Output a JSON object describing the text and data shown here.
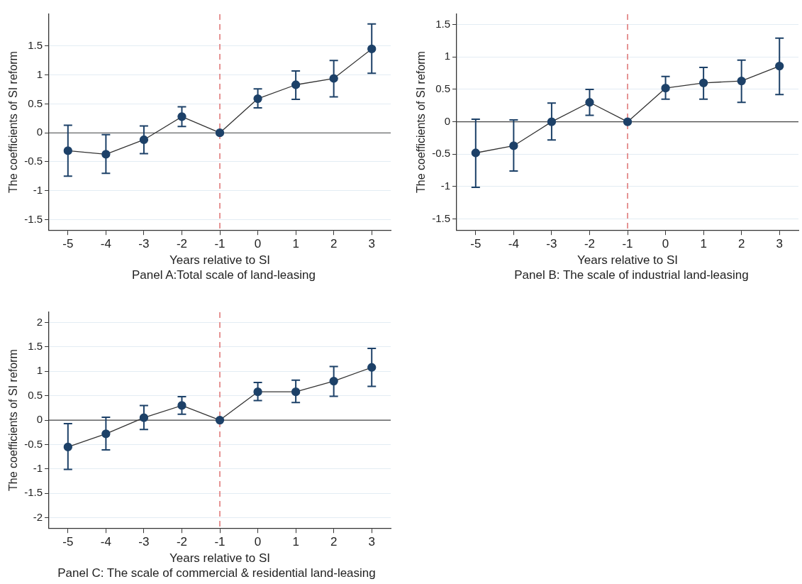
{
  "chart_data": [
    {
      "type": "line",
      "xlabel": "Years relative to SI",
      "ylabel": "The coefficients of SI reform",
      "annotations": [
        "Panel A:Total scale of land-leasing"
      ],
      "x": [
        -5,
        -4,
        -3,
        -2,
        -1,
        0,
        1,
        2,
        3
      ],
      "xlim": [
        -5.5,
        3.5
      ],
      "xticks": [
        -5,
        -4,
        -3,
        -2,
        -1,
        0,
        1,
        2,
        3
      ],
      "ylim": [
        -1.68,
        2.05
      ],
      "yticks": [
        -1.5,
        -1,
        -0.5,
        0,
        0.5,
        1,
        1.5
      ],
      "grid": "y",
      "marker": "circle",
      "line_style": "solid",
      "series": [
        {
          "color": "#1d4168",
          "values": [
            -0.31,
            -0.37,
            -0.12,
            0.28,
            0,
            0.59,
            0.83,
            0.94,
            1.45
          ],
          "errors": [
            [
              -0.75,
              0.13
            ],
            [
              -0.7,
              -0.03
            ],
            [
              -0.36,
              0.12
            ],
            [
              0.11,
              0.45
            ],
            null,
            [
              0.43,
              0.76
            ],
            [
              0.58,
              1.07
            ],
            [
              0.62,
              1.25
            ],
            [
              1.03,
              1.88
            ]
          ]
        }
      ],
      "ref_lines": [
        {
          "axis": "x",
          "value": -1,
          "color": "#e07a7a",
          "line_style": "dashed"
        },
        {
          "axis": "y",
          "value": 0,
          "color": "#444444",
          "line_style": "solid"
        }
      ]
    },
    {
      "type": "line",
      "xlabel": "Years relative to SI",
      "ylabel": "The coefficients of SI reform",
      "annotations": [
        "Panel B: The scale of industrial land-leasing"
      ],
      "x": [
        -5,
        -4,
        -3,
        -2,
        -1,
        0,
        1,
        2,
        3
      ],
      "xlim": [
        -5.5,
        3.5
      ],
      "xticks": [
        -5,
        -4,
        -3,
        -2,
        -1,
        0,
        1,
        2,
        3
      ],
      "ylim": [
        -1.67,
        1.66
      ],
      "yticks": [
        -1.5,
        -1,
        -0.5,
        0,
        0.5,
        1,
        1.5
      ],
      "grid": "y",
      "marker": "circle",
      "line_style": "solid",
      "series": [
        {
          "color": "#1d4168",
          "values": [
            -0.48,
            -0.37,
            0,
            0.3,
            0,
            0.52,
            0.6,
            0.63,
            0.86
          ],
          "errors": [
            [
              -1.01,
              0.04
            ],
            [
              -0.76,
              0.03
            ],
            [
              -0.28,
              0.29
            ],
            [
              0.1,
              0.5
            ],
            null,
            [
              0.35,
              0.7
            ],
            [
              0.35,
              0.84
            ],
            [
              0.3,
              0.95
            ],
            [
              0.42,
              1.29
            ]
          ]
        }
      ],
      "ref_lines": [
        {
          "axis": "x",
          "value": -1,
          "color": "#e07a7a",
          "line_style": "dashed"
        },
        {
          "axis": "y",
          "value": 0,
          "color": "#444444",
          "line_style": "solid"
        }
      ]
    },
    {
      "type": "line",
      "xlabel": "Years relative to SI",
      "ylabel": "The coefficients of SI reform",
      "annotations": [
        "Panel C: The scale of commercial & residential land-leasing"
      ],
      "x": [
        -5,
        -4,
        -3,
        -2,
        -1,
        0,
        1,
        2,
        3
      ],
      "xlim": [
        -5.5,
        3.5
      ],
      "xticks": [
        -5,
        -4,
        -3,
        -2,
        -1,
        0,
        1,
        2,
        3
      ],
      "ylim": [
        -2.21,
        2.21
      ],
      "yticks": [
        -2,
        -1.5,
        -1,
        -0.5,
        0,
        0.5,
        1,
        1.5,
        2
      ],
      "grid": "y",
      "marker": "circle",
      "line_style": "solid",
      "series": [
        {
          "color": "#1d4168",
          "values": [
            -0.55,
            -0.28,
            0.05,
            0.3,
            0,
            0.58,
            0.58,
            0.8,
            1.08
          ],
          "errors": [
            [
              -1.01,
              -0.07
            ],
            [
              -0.61,
              0.06
            ],
            [
              -0.19,
              0.3
            ],
            [
              0.12,
              0.48
            ],
            null,
            [
              0.4,
              0.77
            ],
            [
              0.36,
              0.82
            ],
            [
              0.49,
              1.1
            ],
            [
              0.69,
              1.47
            ]
          ]
        }
      ],
      "ref_lines": [
        {
          "axis": "x",
          "value": -1,
          "color": "#e07a7a",
          "line_style": "dashed"
        },
        {
          "axis": "y",
          "value": 0,
          "color": "#444444",
          "line_style": "solid"
        }
      ]
    }
  ]
}
